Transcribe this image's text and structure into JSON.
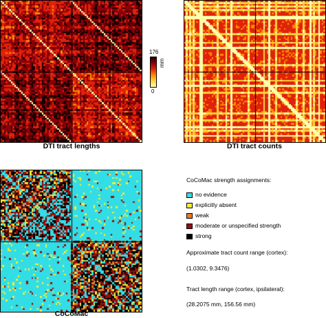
{
  "chart_data": [
    {
      "type": "heatmap",
      "title": "DTI tract lengths",
      "colorbar": {
        "min_label": "0",
        "max_label": "176",
        "unit": "mm",
        "range": [
          0,
          176
        ]
      },
      "colors": [
        "#ffffaa",
        "#ffd23c",
        "#ff8a00",
        "#e0220a",
        "#8a0008",
        "#1a0000"
      ]
    },
    {
      "type": "heatmap",
      "title": "DTI tract counts",
      "colors": [
        "#ff8a00",
        "#e0220a",
        "#ffd23c",
        "#ffffaa"
      ]
    },
    {
      "type": "heatmap",
      "title": "CoCoMac",
      "legend_title": "CoCoMac strength assignments:",
      "categories": [
        {
          "label": "no evidence",
          "color": "#33dde6"
        },
        {
          "label": "explicitly absent",
          "color": "#f5ee30"
        },
        {
          "label": "weak",
          "color": "#ef7a1a"
        },
        {
          "label": "moderate or unspecified strength",
          "color": "#9a0c0c"
        },
        {
          "label": "strong",
          "color": "#000000"
        }
      ]
    }
  ],
  "info": {
    "count_range_title": "Approximate tract count range (cortex):",
    "count_range_value": "(1.0302, 9.3476)",
    "length_range_title": "Tract length range (cortex, ipsilateral):",
    "length_range_value": "(28.2075 mm, 156.56 mm)"
  }
}
